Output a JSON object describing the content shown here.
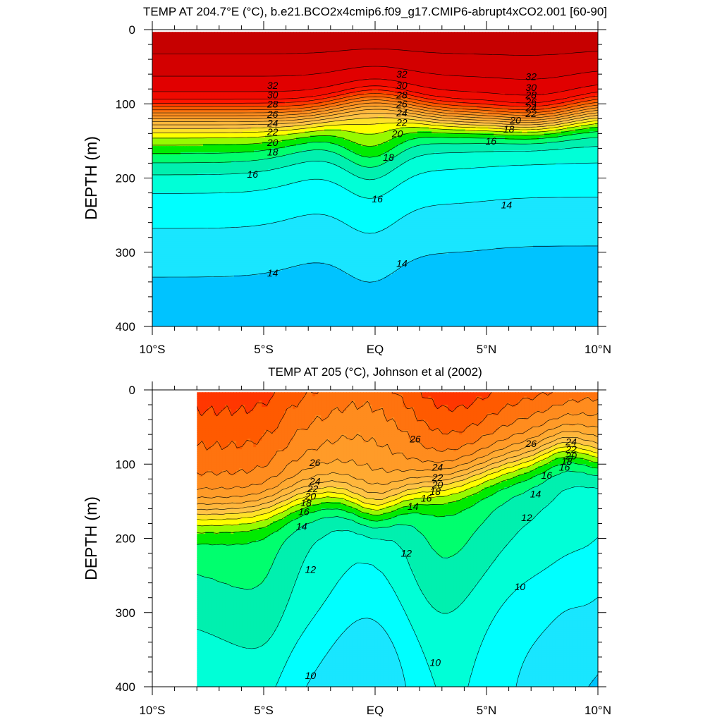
{
  "chart_data": [
    {
      "type": "heatmap",
      "title": "TEMP AT 204.7°E (°C), b.e21.BCO2x4cmip6.f09_g17.CMIP6-abrupt4xCO2.001 [60-90]",
      "xlabel": "",
      "ylabel": "DEPTH (m)",
      "x_ticks": [
        "10°S",
        "5°S",
        "EQ",
        "5°N",
        "10°N"
      ],
      "x_tick_values": [
        -10,
        -5,
        0,
        5,
        10
      ],
      "y_ticks": [
        "0",
        "100",
        "200",
        "300",
        "400"
      ],
      "y_tick_values": [
        0,
        100,
        200,
        300,
        400
      ],
      "xlim": [
        -10,
        10
      ],
      "ylim": [
        400,
        0
      ],
      "data_xlim": [
        -10,
        10
      ],
      "contour_interval": 1,
      "grid": false,
      "contour_labels": [
        {
          "lat": -4.6,
          "depth": 75,
          "value": "32"
        },
        {
          "lat": -4.6,
          "depth": 88,
          "value": "30"
        },
        {
          "lat": -4.6,
          "depth": 100,
          "value": "28"
        },
        {
          "lat": -4.6,
          "depth": 114,
          "value": "26"
        },
        {
          "lat": -4.6,
          "depth": 126,
          "value": "24"
        },
        {
          "lat": -4.6,
          "depth": 138,
          "value": "22"
        },
        {
          "lat": -4.6,
          "depth": 152,
          "value": "20"
        },
        {
          "lat": -4.6,
          "depth": 165,
          "value": "18"
        },
        {
          "lat": -5.5,
          "depth": 195,
          "value": "16"
        },
        {
          "lat": -4.6,
          "depth": 328,
          "value": "14"
        },
        {
          "lat": 1.2,
          "depth": 60,
          "value": "32"
        },
        {
          "lat": 1.2,
          "depth": 75,
          "value": "30"
        },
        {
          "lat": 1.2,
          "depth": 88,
          "value": "28"
        },
        {
          "lat": 1.2,
          "depth": 100,
          "value": "26"
        },
        {
          "lat": 1.2,
          "depth": 112,
          "value": "24"
        },
        {
          "lat": 1.2,
          "depth": 125,
          "value": "22"
        },
        {
          "lat": 1.0,
          "depth": 140,
          "value": "20"
        },
        {
          "lat": 0.6,
          "depth": 172,
          "value": "18"
        },
        {
          "lat": 0.1,
          "depth": 228,
          "value": "16"
        },
        {
          "lat": 1.2,
          "depth": 315,
          "value": "14"
        },
        {
          "lat": 7.0,
          "depth": 63,
          "value": "32"
        },
        {
          "lat": 7.0,
          "depth": 78,
          "value": "30"
        },
        {
          "lat": 7.0,
          "depth": 88,
          "value": "28"
        },
        {
          "lat": 7.0,
          "depth": 97,
          "value": "26"
        },
        {
          "lat": 7.0,
          "depth": 105,
          "value": "24"
        },
        {
          "lat": 7.0,
          "depth": 113,
          "value": "22"
        },
        {
          "lat": 6.3,
          "depth": 122,
          "value": "20"
        },
        {
          "lat": 6.0,
          "depth": 134,
          "value": "18"
        },
        {
          "lat": 5.2,
          "depth": 150,
          "value": "16"
        },
        {
          "lat": 5.9,
          "depth": 236,
          "value": "14"
        }
      ]
    },
    {
      "type": "heatmap",
      "title": "TEMP AT 205 (°C), Johnson et al (2002)",
      "xlabel": "",
      "ylabel": "DEPTH (m)",
      "x_ticks": [
        "10°S",
        "5°S",
        "EQ",
        "5°N",
        "10°N"
      ],
      "x_tick_values": [
        -10,
        -5,
        0,
        5,
        10
      ],
      "y_ticks": [
        "0",
        "100",
        "200",
        "300",
        "400"
      ],
      "y_tick_values": [
        0,
        100,
        200,
        300,
        400
      ],
      "xlim": [
        -10,
        10
      ],
      "ylim": [
        400,
        0
      ],
      "data_xlim": [
        -8,
        10
      ],
      "contour_interval": 1,
      "grid": false,
      "contour_labels": [
        {
          "lat": -2.7,
          "depth": 98,
          "value": "26"
        },
        {
          "lat": -2.7,
          "depth": 123,
          "value": "24"
        },
        {
          "lat": -2.8,
          "depth": 133,
          "value": "22"
        },
        {
          "lat": -2.9,
          "depth": 143,
          "value": "20"
        },
        {
          "lat": -3.1,
          "depth": 152,
          "value": "18"
        },
        {
          "lat": -3.2,
          "depth": 164,
          "value": "16"
        },
        {
          "lat": -3.3,
          "depth": 184,
          "value": "14"
        },
        {
          "lat": -2.9,
          "depth": 242,
          "value": "12"
        },
        {
          "lat": -2.9,
          "depth": 385,
          "value": "10"
        },
        {
          "lat": 1.8,
          "depth": 66,
          "value": "26"
        },
        {
          "lat": 2.8,
          "depth": 104,
          "value": "24"
        },
        {
          "lat": 2.8,
          "depth": 118,
          "value": "22"
        },
        {
          "lat": 2.8,
          "depth": 128,
          "value": "20"
        },
        {
          "lat": 2.7,
          "depth": 137,
          "value": "18"
        },
        {
          "lat": 2.3,
          "depth": 146,
          "value": "16"
        },
        {
          "lat": 1.7,
          "depth": 157,
          "value": "14"
        },
        {
          "lat": 1.4,
          "depth": 220,
          "value": "12"
        },
        {
          "lat": 2.7,
          "depth": 367,
          "value": "10"
        },
        {
          "lat": 7.0,
          "depth": 72,
          "value": "26"
        },
        {
          "lat": 8.8,
          "depth": 70,
          "value": "24"
        },
        {
          "lat": 8.8,
          "depth": 80,
          "value": "22"
        },
        {
          "lat": 8.8,
          "depth": 89,
          "value": "20"
        },
        {
          "lat": 8.6,
          "depth": 96,
          "value": "18"
        },
        {
          "lat": 8.5,
          "depth": 104,
          "value": "16"
        },
        {
          "lat": 7.7,
          "depth": 115,
          "value": "16"
        },
        {
          "lat": 7.2,
          "depth": 140,
          "value": "14"
        },
        {
          "lat": 6.8,
          "depth": 172,
          "value": "12"
        },
        {
          "lat": 6.5,
          "depth": 265,
          "value": "10"
        }
      ]
    }
  ]
}
